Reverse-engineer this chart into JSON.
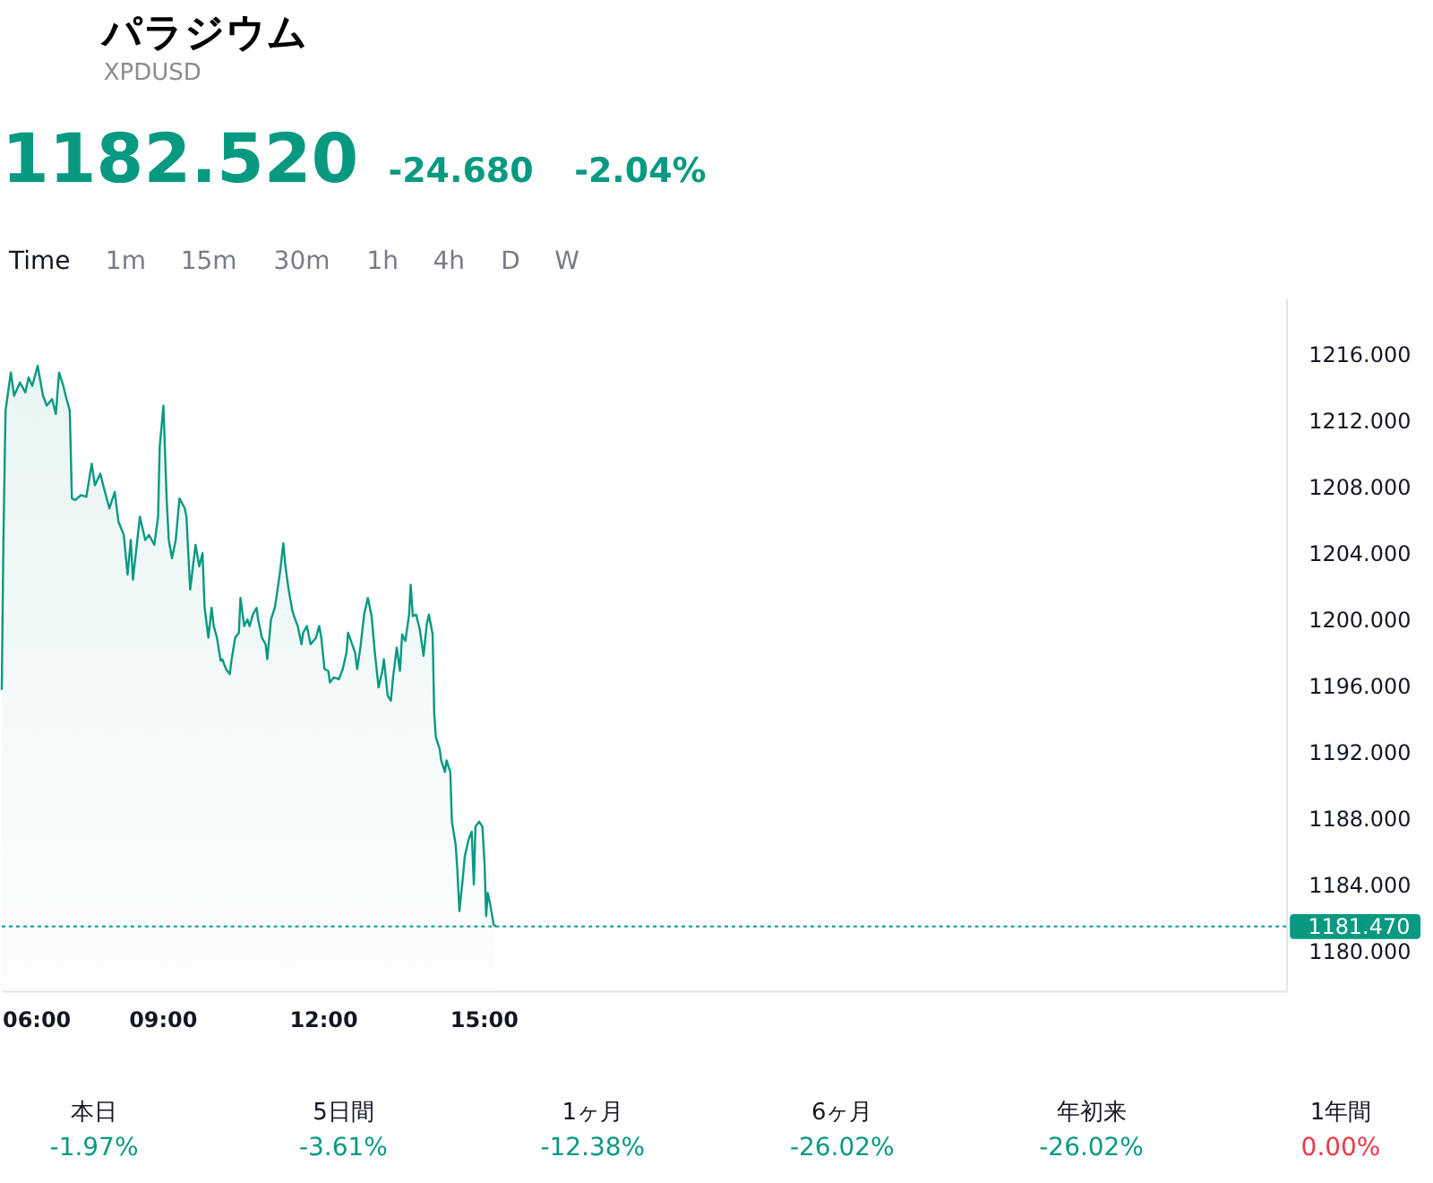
{
  "chart_data": [
    {
      "type": "area",
      "title": "パラジウム",
      "subtitle": "XPDUSD",
      "annotations": [
        "1182.520",
        "-24.680",
        "-2.04%",
        "Time",
        "1m",
        "15m",
        "30m",
        "1h",
        "4h",
        "D",
        "W"
      ],
      "x": [
        6.0,
        6.03,
        6.07,
        6.13,
        6.17,
        6.23,
        6.34,
        6.44,
        6.5,
        6.57,
        6.67,
        6.77,
        6.84,
        6.94,
        7.01,
        7.07,
        7.14,
        7.21,
        7.27,
        7.31,
        7.37,
        7.48,
        7.58,
        7.68,
        7.74,
        7.84,
        7.91,
        8.01,
        8.11,
        8.18,
        8.28,
        8.35,
        8.41,
        8.45,
        8.58,
        8.68,
        8.75,
        8.85,
        8.92,
        8.95,
        9.02,
        9.08,
        9.12,
        9.18,
        9.25,
        9.32,
        9.42,
        9.45,
        9.52,
        9.62,
        9.69,
        9.75,
        9.79,
        9.86,
        9.92,
        9.96,
        10.02,
        10.09,
        10.12,
        10.19,
        10.26,
        10.29,
        10.36,
        10.43,
        10.46,
        10.53,
        10.59,
        10.63,
        10.69,
        10.76,
        10.79,
        10.86,
        10.93,
        10.96,
        11.03,
        11.1,
        11.13,
        11.2,
        11.26,
        11.3,
        11.36,
        11.43,
        11.46,
        11.53,
        11.6,
        11.63,
        11.7,
        11.77,
        11.87,
        11.93,
        11.97,
        12.03,
        12.1,
        12.13,
        12.2,
        12.3,
        12.37,
        12.44,
        12.47,
        12.6,
        12.64,
        12.7,
        12.77,
        12.84,
        12.91,
        12.97,
        13.04,
        13.11,
        13.14,
        13.21,
        13.27,
        13.31,
        13.38,
        13.44,
        13.48,
        13.54,
        13.61,
        13.64,
        13.68,
        13.74,
        13.81,
        13.88,
        13.94,
        13.98,
        14.05,
        14.08,
        14.11,
        14.18,
        14.21,
        14.28,
        14.31,
        14.38,
        14.41,
        14.48,
        14.51,
        14.55,
        14.62,
        14.65,
        14.72,
        14.78,
        14.82,
        14.85,
        14.92,
        14.98,
        15.02,
        15.05,
        15.08,
        15.12,
        15.19,
        15.22
      ],
      "series": [
        {
          "color": "#089981",
          "values": [
            1195.8,
            1204.8,
            1212.6,
            1214.0,
            1214.9,
            1213.5,
            1214.3,
            1213.7,
            1214.6,
            1214.1,
            1215.3,
            1213.5,
            1212.9,
            1213.3,
            1212.4,
            1214.9,
            1214.2,
            1213.3,
            1212.6,
            1207.3,
            1207.2,
            1207.5,
            1207.4,
            1209.4,
            1208.1,
            1208.8,
            1207.9,
            1206.7,
            1207.7,
            1205.9,
            1205.1,
            1202.7,
            1204.8,
            1202.4,
            1206.2,
            1204.8,
            1205.1,
            1204.5,
            1206.2,
            1210.4,
            1212.9,
            1207.3,
            1204.8,
            1203.7,
            1204.8,
            1207.3,
            1206.7,
            1206.2,
            1201.8,
            1204.5,
            1203.2,
            1204.0,
            1200.7,
            1198.9,
            1200.7,
            1199.6,
            1198.9,
            1197.5,
            1197.6,
            1197.0,
            1196.7,
            1197.5,
            1198.9,
            1199.2,
            1201.3,
            1199.6,
            1200.0,
            1199.6,
            1200.3,
            1200.7,
            1200.0,
            1198.9,
            1198.5,
            1197.6,
            1200.0,
            1200.7,
            1201.3,
            1202.9,
            1204.6,
            1203.2,
            1201.8,
            1200.5,
            1200.2,
            1199.6,
            1198.5,
            1199.2,
            1199.6,
            1198.5,
            1198.9,
            1199.6,
            1198.9,
            1197.0,
            1196.9,
            1196.2,
            1196.5,
            1196.4,
            1197.0,
            1198.0,
            1199.2,
            1198.0,
            1197.0,
            1198.3,
            1200.3,
            1201.3,
            1200.2,
            1198.0,
            1195.9,
            1196.9,
            1197.6,
            1195.4,
            1195.1,
            1196.5,
            1198.3,
            1196.9,
            1199.1,
            1198.7,
            1200.3,
            1202.1,
            1200.2,
            1200.3,
            1199.4,
            1197.8,
            1199.7,
            1200.3,
            1199.1,
            1194.3,
            1192.9,
            1192.2,
            1191.5,
            1190.8,
            1191.5,
            1190.8,
            1187.8,
            1186.4,
            1185.0,
            1182.4,
            1184.6,
            1185.7,
            1186.7,
            1187.2,
            1184.0,
            1187.5,
            1187.8,
            1187.5,
            1185.3,
            1182.1,
            1183.5,
            1182.9,
            1181.6,
            1181.5
          ]
        }
      ],
      "xlim": [
        6,
        30
      ],
      "xticks": [
        {
          "value": 6,
          "label": "06:00"
        },
        {
          "value": 9,
          "label": "09:00"
        },
        {
          "value": 12,
          "label": "12:00"
        },
        {
          "value": 15,
          "label": "15:00"
        }
      ],
      "ylim": [
        1177.6,
        1219.4
      ],
      "yticks": [
        {
          "value": 1180,
          "label": "1180.000"
        },
        {
          "value": 1184,
          "label": "1184.000"
        },
        {
          "value": 1188,
          "label": "1188.000"
        },
        {
          "value": 1192,
          "label": "1192.000"
        },
        {
          "value": 1196,
          "label": "1196.000"
        },
        {
          "value": 1200,
          "label": "1200.000"
        },
        {
          "value": 1204,
          "label": "1204.000"
        },
        {
          "value": 1208,
          "label": "1208.000"
        },
        {
          "value": 1212,
          "label": "1212.000"
        },
        {
          "value": 1216,
          "label": "1216.000"
        }
      ],
      "ref_lines": [
        {
          "axis": "y",
          "value": 1181.47,
          "label": "1181.470",
          "color": "#089981",
          "line_style": "dotted"
        }
      ]
    },
    {
      "type": "other",
      "categories": [
        "本日",
        "5日間",
        "1ヶ月",
        "6ヶ月",
        "年初来",
        "1年間"
      ],
      "values": [
        -1.97,
        -3.61,
        -12.38,
        -26.02,
        -26.02,
        0.0
      ],
      "value_labels": [
        "-1.97%",
        "-3.61%",
        "-12.38%",
        "-26.02%",
        "-26.02%",
        "0.00%"
      ],
      "colors": [
        "#089981",
        "#089981",
        "#089981",
        "#089981",
        "#089981",
        "#f23645"
      ]
    }
  ]
}
